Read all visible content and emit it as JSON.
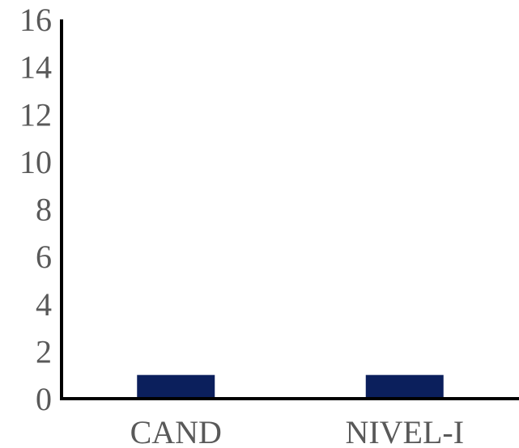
{
  "chart_data": {
    "type": "bar",
    "title": "",
    "xlabel": "",
    "ylabel": "",
    "categories": [
      "CAND",
      "NIVEL-I"
    ],
    "series": [
      {
        "values": [
          1,
          1
        ],
        "color": "#0b1f5c"
      }
    ],
    "ylim": [
      0,
      16
    ],
    "yticks": [
      "0",
      "2",
      "4",
      "6",
      "8",
      "10",
      "12",
      "14",
      "16"
    ],
    "grid": false,
    "legend": "none",
    "colors": {
      "axis": "#000000",
      "tick_text": "#595959",
      "bar": "#0b1f5c"
    }
  }
}
